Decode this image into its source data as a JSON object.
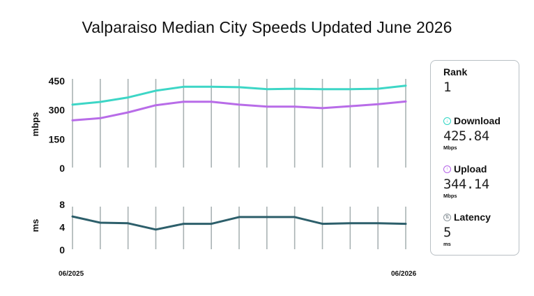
{
  "title": "Valparaiso Median City Speeds Updated June 2026",
  "colors": {
    "download": "#3dd6c6",
    "upload": "#b86ce8",
    "latency": "#2d5f6b",
    "gridline": "#a9b2b3"
  },
  "stats": {
    "rank_label": "Rank",
    "rank_value": "1",
    "download_label": "Download",
    "download_value": "425.84",
    "download_unit": "Mbps",
    "upload_label": "Upload",
    "upload_value": "344.14",
    "upload_unit": "Mbps",
    "latency_label": "Latency",
    "latency_value": "5",
    "latency_unit": "ms"
  },
  "chart_data": [
    {
      "type": "line",
      "ylabel": "mbps",
      "ylim": [
        0,
        450
      ],
      "yticks": [
        "450",
        "300",
        "150",
        "0"
      ],
      "ytick_values": [
        450,
        300,
        150,
        0
      ],
      "grid": "vertical",
      "x": [
        "06/2025",
        "07/2025",
        "08/2025",
        "09/2025",
        "10/2025",
        "11/2025",
        "12/2025",
        "01/2026",
        "02/2026",
        "03/2026",
        "04/2026",
        "05/2026",
        "06/2026"
      ],
      "series": [
        {
          "name": "Download",
          "values": [
            328,
            342,
            365,
            400,
            420,
            420,
            418,
            408,
            410,
            408,
            408,
            410,
            426
          ]
        },
        {
          "name": "Upload",
          "values": [
            247,
            258,
            288,
            325,
            343,
            343,
            328,
            318,
            318,
            310,
            320,
            330,
            344
          ]
        }
      ]
    },
    {
      "type": "line",
      "ylabel": "ms",
      "ylim": [
        0,
        8
      ],
      "yticks": [
        "8",
        "4",
        "0"
      ],
      "ytick_values": [
        8,
        4,
        0
      ],
      "grid": "vertical",
      "x": [
        "06/2025",
        "07/2025",
        "08/2025",
        "09/2025",
        "10/2025",
        "11/2025",
        "12/2025",
        "01/2026",
        "02/2026",
        "03/2026",
        "04/2026",
        "05/2026",
        "06/2026"
      ],
      "x_tick_labels": [
        "06/2025",
        "06/2026"
      ],
      "series": [
        {
          "name": "Latency",
          "values": [
            5.9,
            4.8,
            4.7,
            3.6,
            4.6,
            4.6,
            5.8,
            5.8,
            5.8,
            4.6,
            4.7,
            4.7,
            4.6
          ]
        }
      ]
    }
  ]
}
